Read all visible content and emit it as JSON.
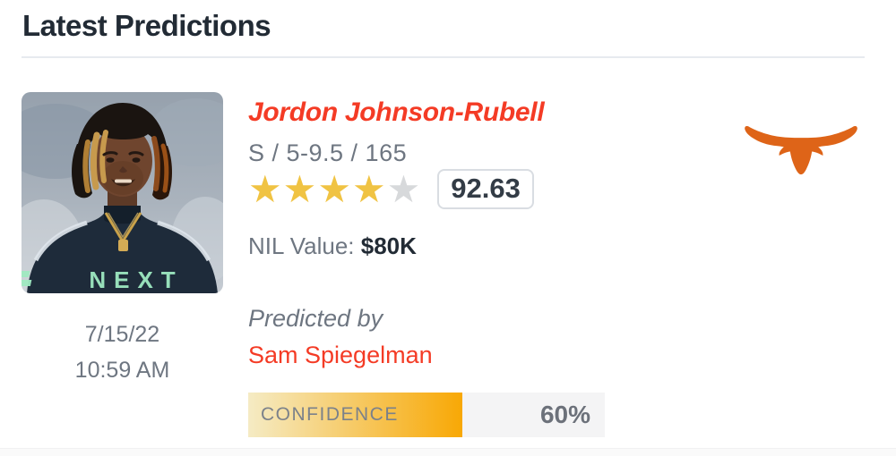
{
  "header": {
    "title": "Latest Predictions"
  },
  "card": {
    "photo": {
      "icon": "player-headshot",
      "date": "7/15/22",
      "time": "10:59 AM"
    },
    "player": {
      "name": "Jordon Johnson-Rubell",
      "details": "S / 5-9.5 / 165",
      "stars_filled": 4,
      "stars_total": 5,
      "rating": "92.63"
    },
    "nil": {
      "label": "NIL Value: ",
      "value": "$80K"
    },
    "prediction": {
      "by_label": "Predicted by",
      "author": "Sam Spiegelman"
    },
    "confidence": {
      "label": "CONFIDENCE",
      "percent_text": "60%",
      "value": 60
    },
    "team": {
      "logo_icon": "texas-longhorns-logo"
    }
  },
  "colors": {
    "accent": "#f43b25",
    "heading": "#222b35",
    "muted": "#6e7681",
    "value_dark": "#222b35",
    "star_gold": "#f0c343",
    "star_empty": "#d7d9db",
    "longhorn_orange": "#de6418",
    "conf_start": "#f5ebc4",
    "conf_end": "#f8a805",
    "conf_track": "#f4f4f5"
  }
}
